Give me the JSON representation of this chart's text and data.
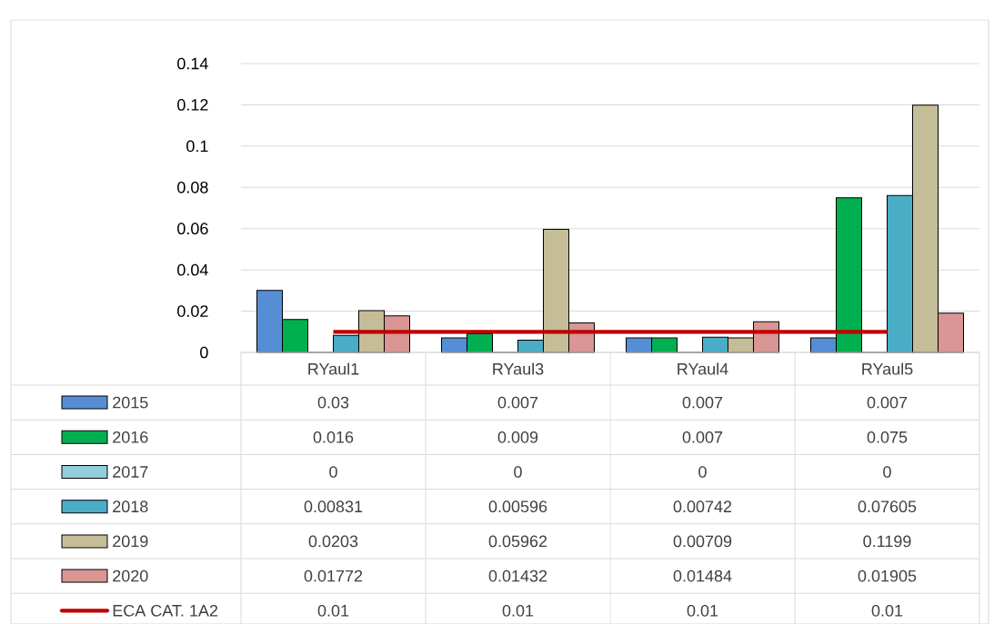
{
  "chart_data": {
    "type": "bar",
    "categories": [
      "RYaul1",
      "RYaul3",
      "RYaul4",
      "RYaul5"
    ],
    "series": [
      {
        "name": "2015",
        "color": "#558ed5",
        "values": [
          0.03,
          0.007,
          0.007,
          0.007
        ]
      },
      {
        "name": "2016",
        "color": "#00b050",
        "values": [
          0.016,
          0.009,
          0.007,
          0.075
        ]
      },
      {
        "name": "2017",
        "color": "#92cddc",
        "values": [
          0,
          0,
          0,
          0
        ]
      },
      {
        "name": "2018",
        "color": "#4bacc6",
        "values": [
          0.00831,
          0.00596,
          0.00742,
          0.07605
        ]
      },
      {
        "name": "2019",
        "color": "#c4bd97",
        "values": [
          0.0203,
          0.05962,
          0.00709,
          0.1199
        ]
      },
      {
        "name": "2020",
        "color": "#d99694",
        "values": [
          0.01772,
          0.01432,
          0.01484,
          0.01905
        ]
      },
      {
        "name": "ECA CAT. 1A2",
        "type": "line",
        "color": "#c00000",
        "values": [
          0.01,
          0.01,
          0.01,
          0.01
        ]
      }
    ],
    "ylim": [
      0,
      0.14
    ],
    "yticks": [
      0,
      0.02,
      0.04,
      0.06,
      0.08,
      0.1,
      0.12,
      0.14
    ],
    "grid": "y",
    "legend": "bottom",
    "data_labels": true
  }
}
